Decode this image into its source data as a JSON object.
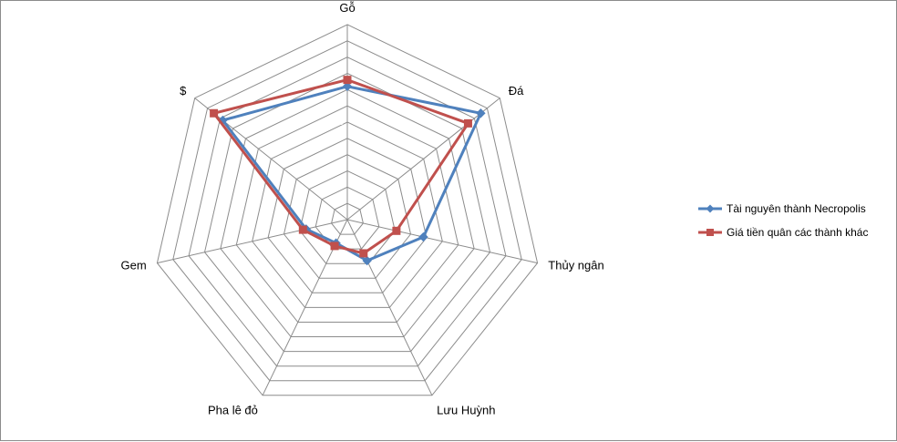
{
  "chart_data": {
    "type": "radar",
    "categories": [
      "Gỗ",
      "Đá",
      "Thủy ngân",
      "Lưu Huỳnh",
      "Pha lê đỏ",
      "Gem",
      "$"
    ],
    "series": [
      {
        "name": "Tài nguyên thành Necropolis",
        "values": [
          82,
          105,
          48,
          28,
          16,
          26,
          98
        ],
        "color": "#4f81bd",
        "marker": "diamond"
      },
      {
        "name": "Giá tiền quân các thành khác",
        "values": [
          86,
          95,
          31,
          23,
          18,
          28,
          105
        ],
        "color": "#c0504d",
        "marker": "square"
      }
    ],
    "rmax": 120,
    "rings": 12,
    "tick_label": "60",
    "legend_position": "right",
    "grid": true
  }
}
